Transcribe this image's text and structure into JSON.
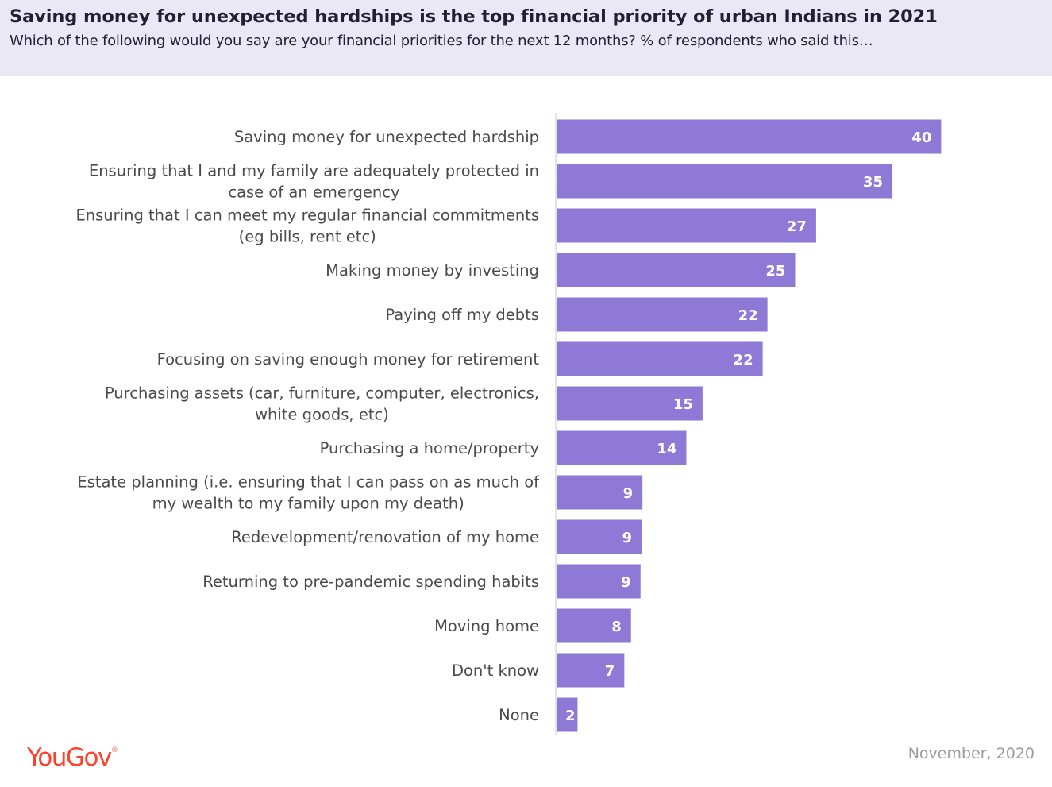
{
  "header": {
    "title": "Saving money for unexpected hardships is the top financial priority of urban Indians in 2021",
    "subtitle": "Which of the following would you say are your financial priorities for the next 12 months? % of respondents who said this…"
  },
  "footer": {
    "logo": "YouGov",
    "date": "November, 2020"
  },
  "colors": {
    "bar": "#8e79d6",
    "header_bg": "#ebe8f5",
    "logo": "#ff412c",
    "label_text": "#4a4a4a",
    "value_text": "#ffffff"
  },
  "chart_data": {
    "type": "bar",
    "orientation": "horizontal",
    "title": "Saving money for unexpected hardships is the top financial priority of urban Indians in 2021",
    "subtitle": "Which of the following would you say are your financial priorities for the next 12 months? % of respondents who said this…",
    "xlim": [
      0,
      52
    ],
    "grid": false,
    "categories": [
      [
        "Saving money for unexpected hardship"
      ],
      [
        "Ensuring that I and my family are adequately protected in",
        "case of an emergency"
      ],
      [
        "Ensuring that I can meet my regular financial commitments",
        "(eg bills, rent etc)"
      ],
      [
        "Making money by investing"
      ],
      [
        "Paying off my debts"
      ],
      [
        "Focusing on saving enough money for retirement"
      ],
      [
        "Purchasing assets (car, furniture, computer, electronics,",
        "white goods, etc)"
      ],
      [
        "Purchasing a home/property"
      ],
      [
        "Estate planning (i.e. ensuring that I can pass on as much of",
        "my wealth to my family upon my death)"
      ],
      [
        "Redevelopment/renovation of my  home"
      ],
      [
        "Returning to pre-pandemic spending habits"
      ],
      [
        "Moving  home"
      ],
      [
        "Don't know"
      ],
      [
        "None"
      ]
    ],
    "values": [
      40,
      35,
      27,
      25,
      22,
      22,
      15,
      14,
      9,
      9,
      9,
      8,
      7,
      2
    ],
    "precise_values": [
      40.3,
      35.2,
      27.2,
      25.0,
      22.1,
      21.6,
      15.3,
      13.6,
      9.0,
      8.9,
      8.8,
      7.8,
      7.1,
      2.2
    ]
  }
}
